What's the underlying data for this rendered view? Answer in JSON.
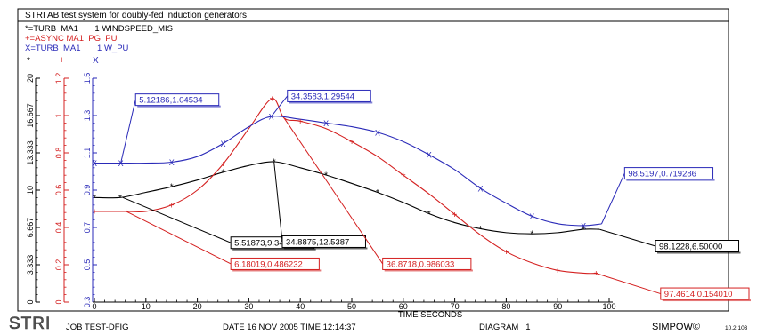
{
  "window_title": "STRI AB test system for doubly-fed induction generators",
  "legend": [
    {
      "marker": "*",
      "label": "*=TURB  MA1       1 WINDSPEED_MIS",
      "color": "#000000"
    },
    {
      "marker": "+",
      "label": "+=ASYNC MA1  PG  PU",
      "color": "#d42020"
    },
    {
      "marker": "X",
      "label": "X=TURB  MA1       1 W_PU",
      "color": "#2a2ab8"
    }
  ],
  "footer": {
    "logo_text": "STRI",
    "job": "JOB TEST-DFIG",
    "date": "DATE 16 NOV 2005 TIME 12:14:37",
    "diagram": "DIAGRAM   1",
    "brand": "SIMPOW©",
    "version": "10.2.103"
  },
  "colors": {
    "black": "#000000",
    "red": "#d42020",
    "blue": "#2a2ab8"
  },
  "chart_data": {
    "type": "line",
    "xlabel": "TIME SECONDS",
    "xlim": [
      0,
      100
    ],
    "x_ticks": [
      "0",
      "10",
      "20",
      "30",
      "40",
      "50",
      "60",
      "70",
      "80",
      "90",
      "100"
    ],
    "axes": [
      {
        "series": "WINDSPEED_MIS",
        "color": "#000000",
        "ylim": [
          0,
          20
        ],
        "ticks": [
          "0",
          "3.333",
          "6.667",
          "10",
          "13.333",
          "16.667",
          "20"
        ]
      },
      {
        "series": "PG PU",
        "color": "#d42020",
        "ylim": [
          0,
          1.2
        ],
        "ticks": [
          "0",
          "0.2",
          "0.4",
          "0.6",
          "0.8",
          "1",
          "1.2"
        ]
      },
      {
        "series": "W_PU",
        "color": "#2a2ab8",
        "ylim": [
          0.3,
          1.5
        ],
        "ticks": [
          "0.3",
          "0.5",
          "0.7",
          "0.9",
          "1.1",
          "1.3",
          "1.5"
        ]
      }
    ],
    "series": [
      {
        "name": "TURB MA1 1 WINDSPEED_MIS",
        "axis": 0,
        "color": "#000000",
        "marker": "*",
        "x": [
          0,
          5,
          10,
          15,
          20,
          25,
          30,
          34.9,
          40,
          45,
          50,
          55,
          60,
          65,
          70,
          75,
          80,
          85,
          90,
          95,
          98.1
        ],
        "y": [
          9.34,
          9.34,
          9.8,
          10.3,
          10.9,
          11.6,
          12.2,
          12.54,
          12.0,
          11.35,
          10.6,
          9.8,
          8.9,
          7.9,
          7.1,
          6.55,
          6.2,
          6.1,
          6.2,
          6.5,
          6.5
        ]
      },
      {
        "name": "ASYNC MA1 PG PU",
        "axis": 1,
        "color": "#d42020",
        "marker": "+",
        "x": [
          0,
          6.18,
          10,
          15,
          20,
          25,
          30,
          34.5,
          36.87,
          40,
          45,
          50,
          55,
          60,
          65,
          70,
          75,
          80,
          85,
          90,
          95,
          97.46
        ],
        "y": [
          0.486,
          0.486,
          0.486,
          0.52,
          0.6,
          0.74,
          0.93,
          1.09,
          0.986,
          0.97,
          0.93,
          0.86,
          0.78,
          0.68,
          0.58,
          0.47,
          0.36,
          0.27,
          0.21,
          0.17,
          0.155,
          0.154
        ]
      },
      {
        "name": "TURB MA1 1 W_PU",
        "axis": 2,
        "color": "#2a2ab8",
        "marker": "X",
        "x": [
          0,
          5.12,
          10,
          15,
          20,
          25,
          30,
          34.36,
          40,
          45,
          50,
          55,
          60,
          65,
          70,
          75,
          80,
          85,
          90,
          95,
          98.52
        ],
        "y": [
          1.045,
          1.045,
          1.045,
          1.05,
          1.08,
          1.15,
          1.24,
          1.295,
          1.28,
          1.26,
          1.24,
          1.21,
          1.16,
          1.09,
          1.01,
          0.91,
          0.83,
          0.76,
          0.72,
          0.71,
          0.719
        ]
      }
    ],
    "annotations": [
      {
        "text": "5.12186,1.04534",
        "color": "#2a2ab8",
        "series": 2,
        "x": 5.12,
        "y": 1.045,
        "box_x": 8,
        "box_y": 1.385
      },
      {
        "text": "34.3583,1.29544",
        "color": "#2a2ab8",
        "series": 2,
        "x": 34.36,
        "y": 1.295,
        "box_x": 37.5,
        "box_y": 1.405
      },
      {
        "text": "98.5197,0.719286",
        "color": "#2a2ab8",
        "series": 2,
        "x": 98.52,
        "y": 0.719,
        "box_x": 103,
        "box_y": 0.99
      },
      {
        "text": "5.51873,9.34000",
        "color": "#000000",
        "series": 0,
        "x": 5.52,
        "y": 9.34,
        "box_x": 26.5,
        "box_y": 5.3
      },
      {
        "text": "34.8875,12.5387",
        "color": "#000000",
        "series": 0,
        "x": 34.89,
        "y": 12.54,
        "box_x": 36.5,
        "box_y": 5.4
      },
      {
        "text": "98.1228,6.50000",
        "color": "#000000",
        "series": 0,
        "x": 98.12,
        "y": 6.5,
        "box_x": 109,
        "box_y": 5.0
      },
      {
        "text": "6.18019,0.486232",
        "color": "#d42020",
        "series": 1,
        "x": 6.18,
        "y": 0.486,
        "box_x": 26.5,
        "box_y": 0.205
      },
      {
        "text": "36.8718,0.986033",
        "color": "#d42020",
        "series": 1,
        "x": 36.87,
        "y": 0.986,
        "box_x": 56,
        "box_y": 0.205
      },
      {
        "text": "97.4614,0.154010",
        "color": "#d42020",
        "series": 1,
        "x": 97.46,
        "y": 0.154,
        "box_x": 110,
        "box_y": 0.045
      }
    ]
  }
}
